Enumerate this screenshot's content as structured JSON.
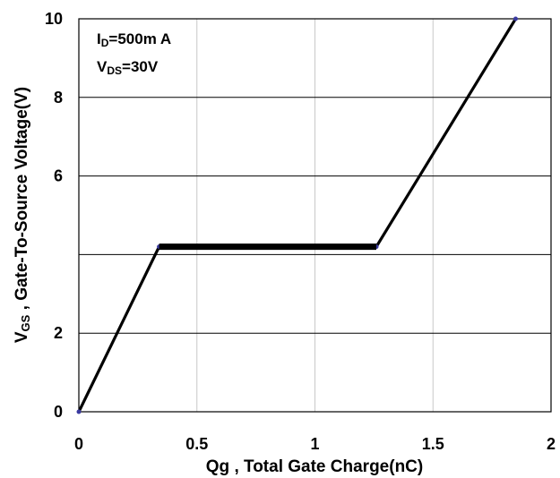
{
  "chart_data": {
    "type": "line",
    "xlabel": "Qg , Total Gate Charge(nC)",
    "ylabel": {
      "main": "V",
      "sub": "GS",
      "rest": " , Gate-To-Source Voltage(V)"
    },
    "xlim": [
      0,
      2
    ],
    "ylim": [
      0,
      10
    ],
    "x_ticks": [
      {
        "value": 0,
        "label": "0"
      },
      {
        "value": 0.5,
        "label": "0.5"
      },
      {
        "value": 1,
        "label": "1"
      },
      {
        "value": 1.5,
        "label": "1.5"
      },
      {
        "value": 2,
        "label": "2"
      }
    ],
    "y_ticks": [
      {
        "value": 0,
        "label": "0"
      },
      {
        "value": 2,
        "label": "2"
      },
      {
        "value": 4,
        "label": ""
      },
      {
        "value": 6,
        "label": "6"
      },
      {
        "value": 8,
        "label": "8"
      },
      {
        "value": 10,
        "label": "10"
      }
    ],
    "grid": true,
    "annotations": [
      {
        "main": "I",
        "sub": "D",
        "rest": "=500m A"
      },
      {
        "main": "V",
        "sub": "DS",
        "rest": "=30V"
      }
    ],
    "series": [
      {
        "x": [
          0,
          0.34,
          1.26,
          1.85
        ],
        "y": [
          0,
          4.2,
          4.2,
          10
        ],
        "color": "#000000"
      }
    ],
    "plateau": {
      "x": [
        0.34,
        1.26
      ],
      "y": 4.2
    }
  }
}
